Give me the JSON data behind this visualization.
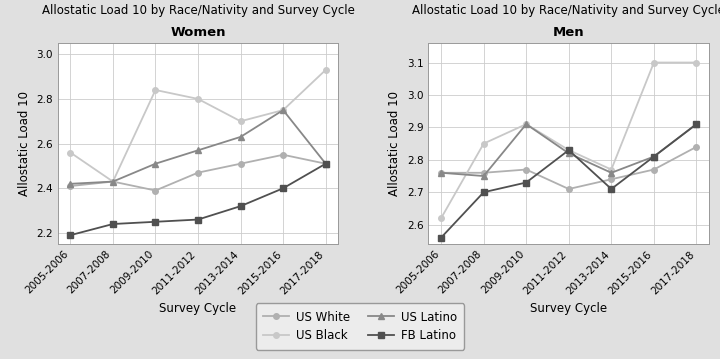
{
  "x_labels": [
    "2005-2006",
    "2007-2008",
    "2009-2010",
    "2011-2012",
    "2013-2014",
    "2015-2016",
    "2017-2018"
  ],
  "title_line1": "Allostatic Load 10 by Race/Nativity and Survey Cycle",
  "ylabel": "Allostatic Load 10",
  "xlabel": "Survey Cycle",
  "women": {
    "subtitle": "Women",
    "us_white": [
      2.41,
      2.43,
      2.39,
      2.47,
      2.51,
      2.55,
      2.51
    ],
    "us_black": [
      2.56,
      2.43,
      2.84,
      2.8,
      2.7,
      2.75,
      2.93
    ],
    "us_latino": [
      2.42,
      2.43,
      2.51,
      2.57,
      2.63,
      2.75,
      2.51
    ],
    "fb_latino": [
      2.19,
      2.24,
      2.25,
      2.26,
      2.32,
      2.4,
      2.51
    ],
    "ylim": [
      2.15,
      3.05
    ],
    "yticks": [
      2.2,
      2.4,
      2.6,
      2.8,
      3.0
    ]
  },
  "men": {
    "subtitle": "Men",
    "us_white": [
      2.76,
      2.76,
      2.77,
      2.71,
      2.74,
      2.77,
      2.84
    ],
    "us_black": [
      2.62,
      2.85,
      2.91,
      2.83,
      2.77,
      3.1,
      3.1
    ],
    "us_latino": [
      2.76,
      2.75,
      2.91,
      2.82,
      2.76,
      2.81,
      2.91
    ],
    "fb_latino": [
      2.56,
      2.7,
      2.73,
      2.83,
      2.71,
      2.81,
      2.91
    ],
    "ylim": [
      2.54,
      3.16
    ],
    "yticks": [
      2.6,
      2.7,
      2.8,
      2.9,
      3.0,
      3.1
    ]
  },
  "colors": {
    "us_white": "#b0b0b0",
    "us_black": "#c8c8c8",
    "us_latino": "#888888",
    "fb_latino": "#505050"
  },
  "markers": {
    "us_white": "o",
    "us_black": "o",
    "us_latino": "^",
    "fb_latino": "s"
  },
  "legend_labels": {
    "us_white": "US White",
    "us_black": "US Black",
    "us_latino": "US Latino",
    "fb_latino": "FB Latino"
  },
  "legend_order": [
    "us_white",
    "us_black",
    "us_latino",
    "fb_latino"
  ],
  "bg_color": "#e0e0e0",
  "plot_bg_color": "#ffffff",
  "title_fontsize": 8.5,
  "subtitle_fontsize": 9.5,
  "axis_label_fontsize": 8.5,
  "tick_fontsize": 7.5,
  "legend_fontsize": 8.5
}
